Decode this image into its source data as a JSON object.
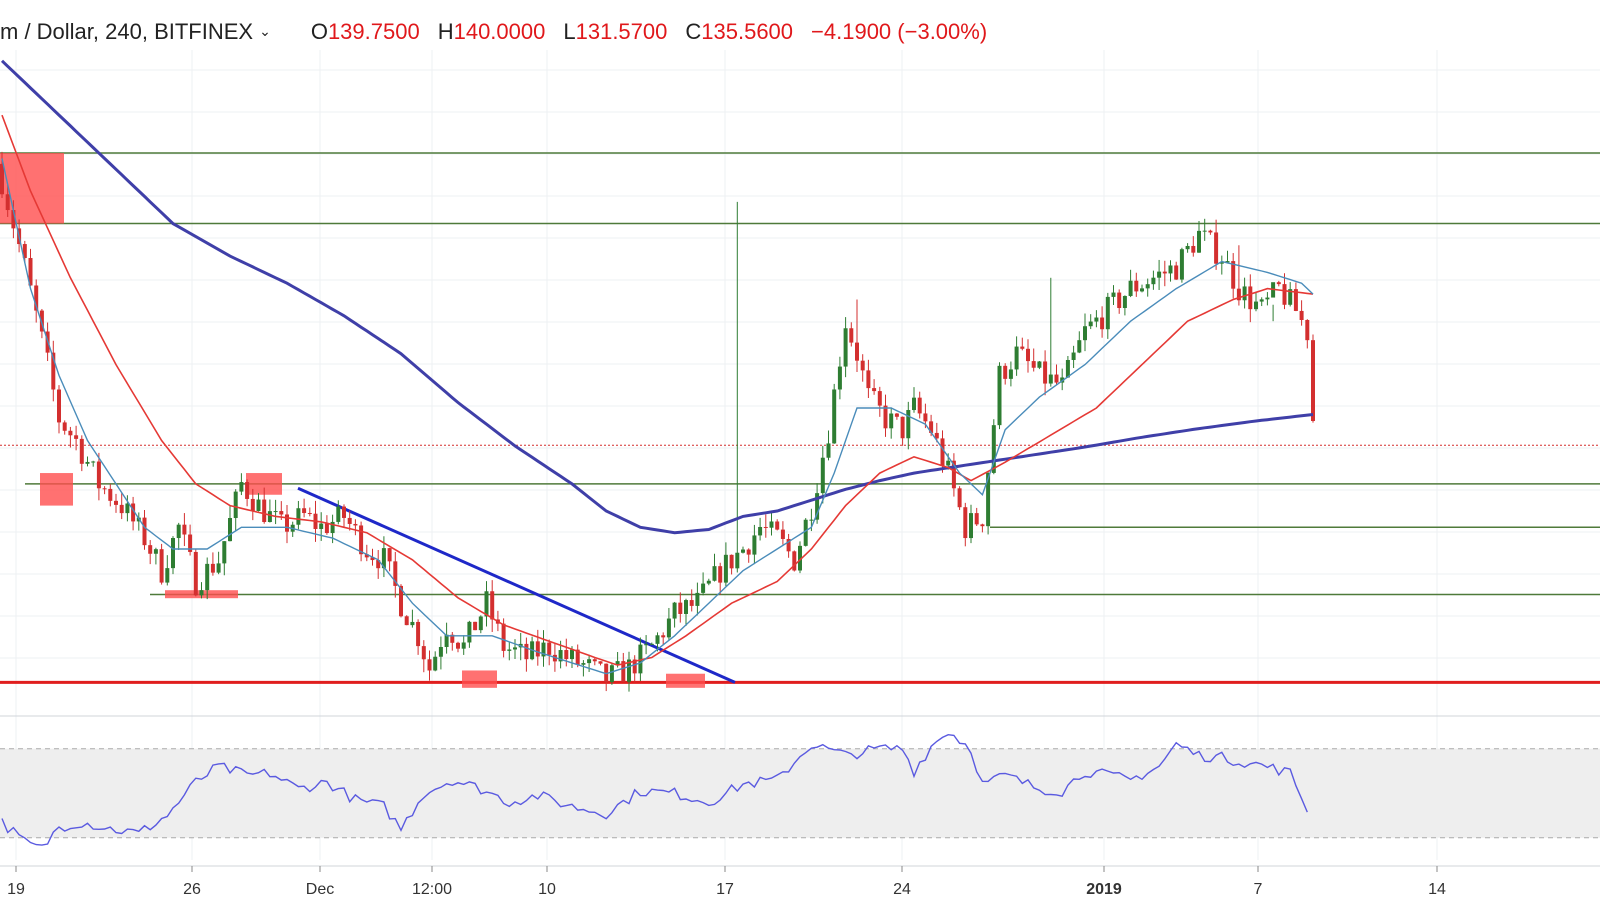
{
  "header": {
    "symbol": "m / Dollar, 240, BITFINEX",
    "chevron": "chevron-down-icon",
    "open_label": "O",
    "open": "139.7500",
    "high_label": "H",
    "high": "140.0000",
    "low_label": "L",
    "low": "131.5700",
    "close_label": "C",
    "close": "135.5600",
    "change": "−4.1900 (−3.00%)"
  },
  "colors": {
    "bull": "#2e7d32",
    "bear": "#d32f2f",
    "ema_fast": "#4a8cba",
    "ema_slow": "#e53935",
    "ma_long": "#3f3fa8",
    "level": "#4f7a3a",
    "support": "#e01e1e",
    "trendline": "#1e28c8",
    "rsi": "#5a5ae0",
    "highlight": "#ff4d4d"
  },
  "chart_data": [
    {
      "type": "candlestick",
      "title": "",
      "x_ticks": [
        "19",
        "26",
        "Dec",
        "12:00",
        "10",
        "17",
        "24",
        "2019",
        "7",
        "14"
      ],
      "ylim": [
        113,
        172
      ],
      "last_close": 135.56,
      "horizontal_levels": [
        {
          "kind": "resistance",
          "value": 162.5
        },
        {
          "kind": "resistance",
          "value": 156.0
        },
        {
          "kind": "support",
          "value": 132.0
        },
        {
          "kind": "support",
          "value": 128.0
        },
        {
          "kind": "support",
          "value": 121.8
        },
        {
          "kind": "support",
          "value": 113.7
        }
      ],
      "trendline": {
        "from_x": "Dec",
        "from_y": 131.6,
        "to_x": "17",
        "to_y": 113.7
      },
      "highlight_zones": [
        {
          "near_x": "19",
          "from": 156.0,
          "to": 162.5
        },
        {
          "near_x": "19",
          "from": 130.0,
          "to": 133.0
        },
        {
          "near_x": "26",
          "from": 121.5,
          "to": 122.2
        },
        {
          "near_x": "26",
          "from": 131.0,
          "to": 133.0
        },
        {
          "near_x": "12:00",
          "from": 113.2,
          "to": 114.8
        },
        {
          "near_x": "10",
          "from": 113.2,
          "to": 114.5
        }
      ],
      "close_anchors": [
        [
          0,
          160
        ],
        [
          4,
          152
        ],
        [
          8,
          143
        ],
        [
          10,
          138
        ],
        [
          13,
          136
        ],
        [
          17,
          132
        ],
        [
          21,
          130
        ],
        [
          25,
          127
        ],
        [
          28,
          124
        ],
        [
          31,
          128
        ],
        [
          34,
          123
        ],
        [
          38,
          125
        ],
        [
          42,
          132
        ],
        [
          45,
          130
        ],
        [
          49,
          128
        ],
        [
          53,
          129
        ],
        [
          56,
          128
        ],
        [
          60,
          129
        ],
        [
          64,
          126
        ],
        [
          67,
          125
        ],
        [
          70,
          121
        ],
        [
          73,
          118
        ],
        [
          75,
          115
        ],
        [
          78,
          119
        ],
        [
          81,
          117
        ],
        [
          85,
          121
        ],
        [
          88,
          117
        ],
        [
          92,
          116
        ],
        [
          96,
          117
        ],
        [
          99,
          116
        ],
        [
          103,
          115
        ],
        [
          106,
          114
        ],
        [
          110,
          115
        ],
        [
          114,
          117
        ],
        [
          118,
          120
        ],
        [
          122,
          121
        ],
        [
          126,
          124
        ],
        [
          130,
          126
        ],
        [
          133,
          128
        ],
        [
          136,
          127
        ],
        [
          139,
          125
        ],
        [
          142,
          130
        ],
        [
          145,
          137
        ],
        [
          148,
          147
        ],
        [
          150,
          144
        ],
        [
          152,
          140
        ],
        [
          155,
          138
        ],
        [
          158,
          137
        ],
        [
          160,
          139
        ],
        [
          163,
          137
        ],
        [
          166,
          133
        ],
        [
          169,
          128
        ],
        [
          172,
          129
        ],
        [
          175,
          142
        ],
        [
          178,
          144
        ],
        [
          182,
          142
        ],
        [
          186,
          141
        ],
        [
          190,
          146
        ],
        [
          194,
          148
        ],
        [
          198,
          150
        ],
        [
          202,
          151
        ],
        [
          206,
          152
        ],
        [
          210,
          155
        ],
        [
          214,
          153
        ],
        [
          217,
          150
        ],
        [
          221,
          148
        ],
        [
          224,
          150
        ],
        [
          227,
          148
        ],
        [
          229,
          146
        ],
        [
          230,
          137.8
        ]
      ],
      "ema_fast_anchors": [
        [
          0,
          162
        ],
        [
          5,
          150
        ],
        [
          10,
          142
        ],
        [
          15,
          136
        ],
        [
          20,
          132
        ],
        [
          25,
          128
        ],
        [
          30,
          126
        ],
        [
          36,
          126
        ],
        [
          42,
          128
        ],
        [
          50,
          128
        ],
        [
          58,
          127
        ],
        [
          66,
          125
        ],
        [
          72,
          121
        ],
        [
          78,
          118
        ],
        [
          86,
          118
        ],
        [
          94,
          116.5
        ],
        [
          100,
          115.5
        ],
        [
          106,
          114.5
        ],
        [
          112,
          115.5
        ],
        [
          118,
          118
        ],
        [
          124,
          121
        ],
        [
          130,
          124
        ],
        [
          136,
          126
        ],
        [
          142,
          128
        ],
        [
          146,
          133
        ],
        [
          150,
          139
        ],
        [
          156,
          139
        ],
        [
          162,
          137.5
        ],
        [
          168,
          133
        ],
        [
          172,
          131
        ],
        [
          176,
          137
        ],
        [
          182,
          140
        ],
        [
          190,
          143
        ],
        [
          198,
          147
        ],
        [
          206,
          150
        ],
        [
          214,
          152.5
        ],
        [
          222,
          151.5
        ],
        [
          228,
          150.5
        ],
        [
          230,
          149.5
        ]
      ],
      "ema_slow_anchors": [
        [
          0,
          166
        ],
        [
          5,
          159
        ],
        [
          12,
          151
        ],
        [
          20,
          143
        ],
        [
          28,
          136
        ],
        [
          34,
          132
        ],
        [
          40,
          130
        ],
        [
          48,
          129
        ],
        [
          56,
          128.5
        ],
        [
          64,
          127.5
        ],
        [
          72,
          125
        ],
        [
          80,
          121.5
        ],
        [
          88,
          119
        ],
        [
          96,
          117.5
        ],
        [
          104,
          116
        ],
        [
          108,
          115.3
        ],
        [
          114,
          116
        ],
        [
          120,
          118
        ],
        [
          128,
          121
        ],
        [
          136,
          123
        ],
        [
          142,
          126
        ],
        [
          148,
          130
        ],
        [
          154,
          133
        ],
        [
          160,
          134.5
        ],
        [
          166,
          133.5
        ],
        [
          170,
          132.3
        ],
        [
          176,
          134
        ],
        [
          184,
          136.5
        ],
        [
          192,
          139
        ],
        [
          200,
          143
        ],
        [
          208,
          147
        ],
        [
          216,
          149
        ],
        [
          222,
          150
        ],
        [
          230,
          149.5
        ]
      ],
      "ma_long_anchors": [
        [
          0,
          171
        ],
        [
          10,
          166
        ],
        [
          20,
          161
        ],
        [
          30,
          156
        ],
        [
          40,
          153
        ],
        [
          50,
          150.5
        ],
        [
          60,
          147.5
        ],
        [
          70,
          144
        ],
        [
          80,
          139.5
        ],
        [
          90,
          135.5
        ],
        [
          100,
          132
        ],
        [
          106,
          129.5
        ],
        [
          112,
          128
        ],
        [
          118,
          127.5
        ],
        [
          124,
          127.8
        ],
        [
          130,
          129
        ],
        [
          136,
          129.5
        ],
        [
          142,
          130.5
        ],
        [
          148,
          131.5
        ],
        [
          154,
          132.3
        ],
        [
          160,
          133
        ],
        [
          170,
          133.8
        ],
        [
          180,
          134.6
        ],
        [
          190,
          135.4
        ],
        [
          200,
          136.3
        ],
        [
          210,
          137.1
        ],
        [
          220,
          137.8
        ],
        [
          230,
          138.4
        ]
      ],
      "wick_spikes": [
        [
          129,
          158
        ],
        [
          150,
          149
        ],
        [
          184,
          151
        ],
        [
          217,
          154
        ],
        [
          223,
          147
        ]
      ]
    },
    {
      "type": "line",
      "title": "",
      "name": "",
      "ylim": [
        20,
        82
      ],
      "band": [
        30,
        70
      ],
      "values_anchors": [
        [
          0,
          37
        ],
        [
          4,
          28
        ],
        [
          7,
          25
        ],
        [
          10,
          35
        ],
        [
          14,
          37
        ],
        [
          19,
          34
        ],
        [
          24,
          32
        ],
        [
          29,
          40
        ],
        [
          34,
          55
        ],
        [
          38,
          62
        ],
        [
          43,
          58
        ],
        [
          47,
          59
        ],
        [
          52,
          52
        ],
        [
          57,
          55
        ],
        [
          62,
          47
        ],
        [
          67,
          44
        ],
        [
          70,
          34
        ],
        [
          74,
          50
        ],
        [
          79,
          56
        ],
        [
          84,
          52
        ],
        [
          89,
          46
        ],
        [
          94,
          49
        ],
        [
          100,
          44
        ],
        [
          106,
          41
        ],
        [
          112,
          51
        ],
        [
          118,
          50
        ],
        [
          124,
          46
        ],
        [
          130,
          54
        ],
        [
          136,
          56
        ],
        [
          142,
          72
        ],
        [
          148,
          67
        ],
        [
          154,
          70
        ],
        [
          158,
          70
        ],
        [
          160,
          60
        ],
        [
          163,
          71
        ],
        [
          166,
          78
        ],
        [
          170,
          70
        ],
        [
          172,
          54
        ],
        [
          176,
          58
        ],
        [
          182,
          52
        ],
        [
          186,
          51
        ],
        [
          190,
          60
        ],
        [
          194,
          58
        ],
        [
          198,
          56
        ],
        [
          203,
          62
        ],
        [
          206,
          72
        ],
        [
          210,
          67
        ],
        [
          214,
          66
        ],
        [
          218,
          64
        ],
        [
          222,
          62
        ],
        [
          226,
          59
        ],
        [
          229,
          43
        ]
      ]
    }
  ]
}
